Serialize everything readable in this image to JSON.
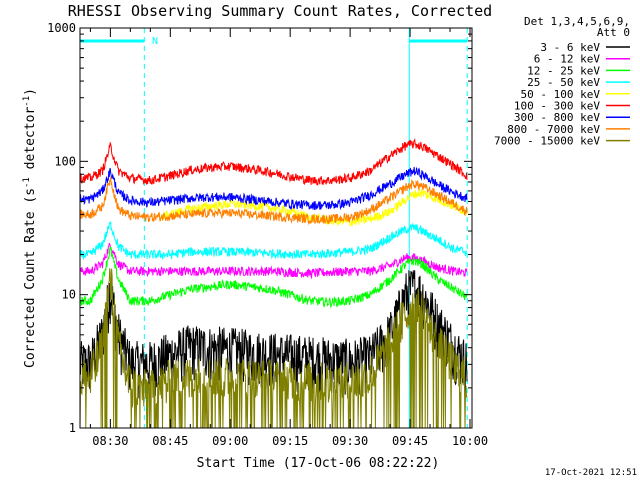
{
  "chart_data": {
    "type": "line",
    "title": "RHESSI Observing Summary Count Rates, Corrected",
    "xlabel": "Start Time (17-Oct-06 08:22:22)",
    "ylabel_main": "Corrected Count Rate (s",
    "ylabel_sup1": "-1",
    "ylabel_mid": " detector",
    "ylabel_sup2": "-1",
    "ylabel_end": ")",
    "y_scale": "log",
    "ylim": [
      1,
      1000
    ],
    "xlim_min": [
      502.4,
      600.5
    ],
    "y_ticks": [
      "1",
      "10",
      "100",
      "1000"
    ],
    "x_ticks": [
      {
        "label": "08:30",
        "min": 510
      },
      {
        "label": "08:45",
        "min": 525
      },
      {
        "label": "09:00",
        "min": 540
      },
      {
        "label": "09:15",
        "min": 555
      },
      {
        "label": "09:30",
        "min": 570
      },
      {
        "label": "09:45",
        "min": 585
      },
      {
        "label": "10:00",
        "min": 600
      }
    ],
    "legend_header": [
      "Det 1,3,4,5,6,9,",
      "Att 0"
    ],
    "legend_position": "right-outside",
    "flag_label": "N",
    "timestamp": "17-Oct-2021 12:51",
    "night_intervals_min": [
      [
        502.4,
        518.5
      ],
      [
        584.8,
        599.3
      ]
    ],
    "series": [
      {
        "name": "3 - 6 keV",
        "color": "#000000",
        "x": [
          502.4,
          505,
          508,
          510,
          512,
          515,
          520,
          525,
          530,
          540,
          550,
          560,
          570,
          575,
          580,
          584,
          586,
          588,
          592,
          596,
          599.3
        ],
        "y": [
          3,
          3,
          5,
          11,
          5,
          3,
          3,
          3.5,
          4,
          3.8,
          3.5,
          3.3,
          3.1,
          3.3,
          5,
          10,
          11,
          10,
          6,
          4,
          3
        ]
      },
      {
        "name": "6 - 12 keV",
        "color": "#ff00ff",
        "x": [
          502.4,
          505,
          508,
          510,
          512,
          515,
          520,
          525,
          530,
          540,
          550,
          560,
          570,
          575,
          580,
          584,
          586,
          588,
          592,
          596,
          599.3
        ],
        "y": [
          15,
          15,
          17,
          24,
          17,
          15,
          15,
          15,
          15,
          15,
          15,
          14.5,
          15,
          15,
          16.5,
          19,
          19,
          18,
          16,
          15,
          14.5
        ]
      },
      {
        "name": "12 - 25 keV",
        "color": "#00ff00",
        "x": [
          502.4,
          505,
          508,
          510,
          512,
          515,
          520,
          525,
          530,
          535,
          540,
          545,
          550,
          555,
          560,
          565,
          570,
          575,
          580,
          584,
          586,
          588,
          592,
          596,
          599.3
        ],
        "y": [
          9,
          9,
          13,
          22,
          13,
          9,
          9,
          10,
          11,
          11.5,
          12,
          11.5,
          11,
          10,
          9,
          8.8,
          9,
          10,
          13,
          17,
          18,
          17,
          13,
          11,
          9.5
        ]
      },
      {
        "name": "25 - 50 keV",
        "color": "#00ffff",
        "x": [
          502.4,
          505,
          508,
          510,
          512,
          515,
          520,
          525,
          530,
          540,
          550,
          560,
          570,
          575,
          580,
          584,
          586,
          588,
          592,
          596,
          599.3
        ],
        "y": [
          20,
          20,
          24,
          34,
          23,
          20,
          20,
          20,
          21,
          21,
          20.5,
          20,
          21,
          22,
          27,
          31,
          32,
          30,
          26,
          22,
          21
        ]
      },
      {
        "name": "50 - 100 keV",
        "color": "#ffff00",
        "x": [
          522,
          525,
          530,
          535,
          540,
          545,
          550,
          555,
          560,
          565,
          570,
          575,
          580,
          584,
          586,
          588,
          592,
          596,
          599.3
        ],
        "y": [
          38,
          40,
          44,
          46,
          48,
          47,
          45,
          42,
          38,
          36,
          35,
          37,
          42,
          52,
          57,
          58,
          52,
          46,
          42
        ]
      },
      {
        "name": "100 - 300 keV",
        "color": "#ff0000",
        "x": [
          502.4,
          505,
          508,
          510,
          512,
          515,
          520,
          525,
          530,
          535,
          540,
          545,
          550,
          555,
          560,
          565,
          570,
          575,
          580,
          584,
          586,
          588,
          592,
          596,
          599.3
        ],
        "y": [
          75,
          75,
          85,
          130,
          85,
          75,
          72,
          78,
          86,
          90,
          92,
          88,
          83,
          77,
          72,
          72,
          75,
          85,
          110,
          132,
          135,
          130,
          110,
          92,
          78
        ]
      },
      {
        "name": "300 - 800 keV",
        "color": "#0000ff",
        "x": [
          502.4,
          505,
          508,
          510,
          512,
          515,
          520,
          525,
          530,
          535,
          540,
          545,
          550,
          555,
          560,
          565,
          570,
          575,
          580,
          584,
          586,
          588,
          592,
          596,
          599.3
        ],
        "y": [
          52,
          52,
          60,
          85,
          58,
          51,
          49,
          51,
          53,
          54,
          54,
          52,
          50,
          48,
          47,
          47,
          49,
          56,
          68,
          80,
          85,
          80,
          67,
          58,
          53
        ]
      },
      {
        "name": "800 - 7000 keV",
        "color": "#ff8000",
        "x": [
          502.4,
          505,
          508,
          510,
          512,
          515,
          520,
          525,
          530,
          535,
          540,
          545,
          550,
          555,
          560,
          565,
          570,
          575,
          580,
          584,
          586,
          588,
          592,
          596,
          599.3
        ],
        "y": [
          40,
          40,
          46,
          75,
          44,
          39,
          38,
          39,
          40,
          41,
          41,
          40,
          39,
          38,
          37,
          37,
          38,
          43,
          53,
          64,
          68,
          65,
          56,
          48,
          42
        ]
      },
      {
        "name": "7000 - 15000 keV",
        "color": "#808000",
        "x": [
          502.4,
          505,
          508,
          510,
          512,
          515,
          520,
          525,
          530,
          540,
          550,
          560,
          570,
          575,
          580,
          584,
          586,
          588,
          592,
          596,
          599.3
        ],
        "y": [
          2.3,
          2.3,
          4,
          13,
          4,
          2,
          1.8,
          2.2,
          2.3,
          2.3,
          2.2,
          2.1,
          2.1,
          2.4,
          4,
          7,
          8,
          7,
          4,
          2.8,
          2.2
        ]
      }
    ]
  }
}
